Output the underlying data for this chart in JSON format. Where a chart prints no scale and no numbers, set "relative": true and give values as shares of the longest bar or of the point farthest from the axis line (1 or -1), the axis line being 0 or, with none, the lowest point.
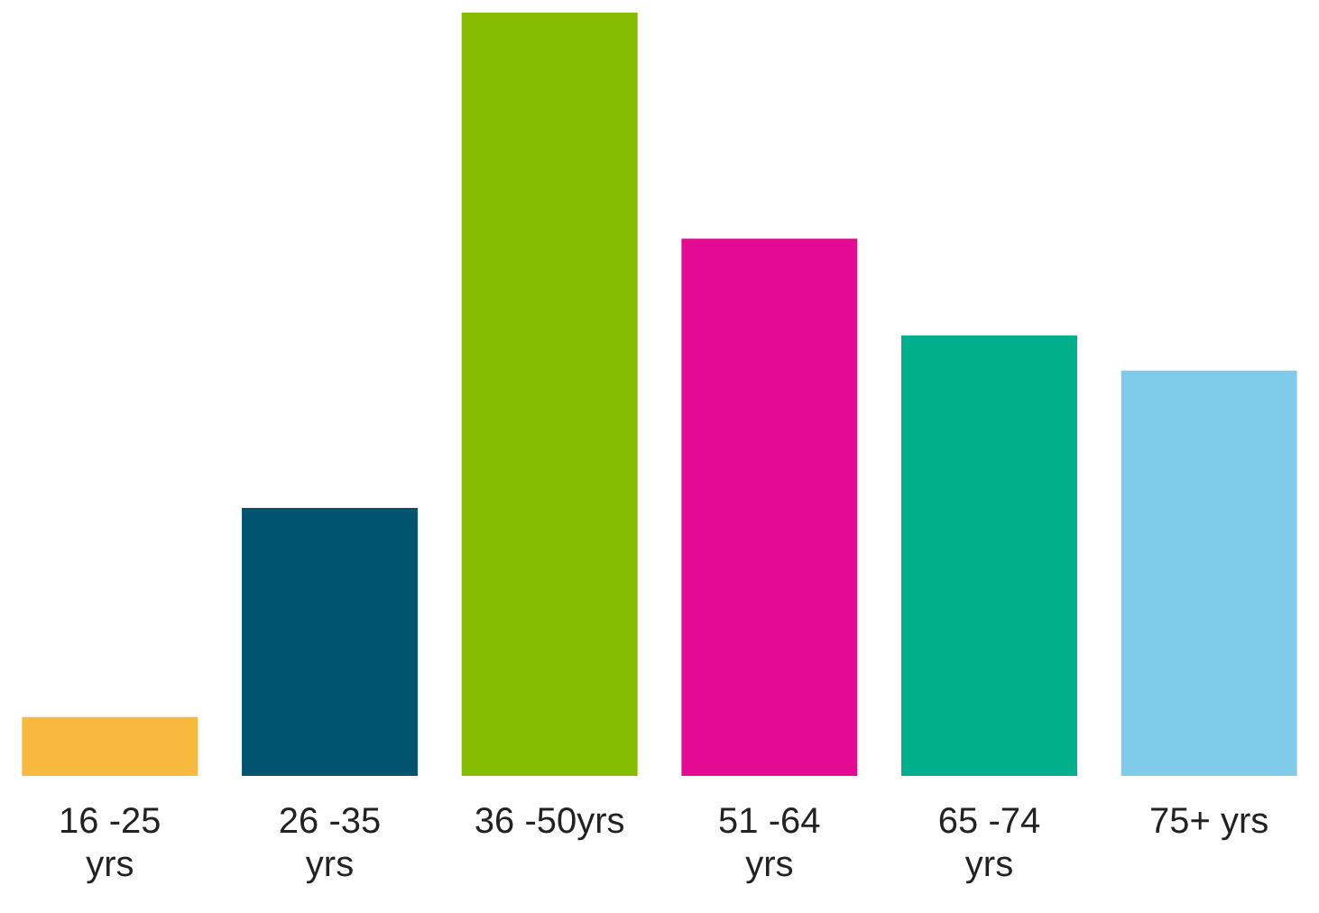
{
  "chart_data": {
    "type": "bar",
    "relative": true,
    "categories": [
      "16 -25\nyrs",
      "26 -35\nyrs",
      "36 -50yrs",
      "51 -64\nyrs",
      "65 -74\nyrs",
      "75+ yrs"
    ],
    "values": [
      0.077,
      0.351,
      1,
      0.704,
      0.577,
      0.531
    ],
    "colors": [
      "#f9b93f",
      "#005470",
      "#84bd00",
      "#e40b92",
      "#00b08d",
      "#80cbea"
    ],
    "grid": false,
    "legend": false
  }
}
